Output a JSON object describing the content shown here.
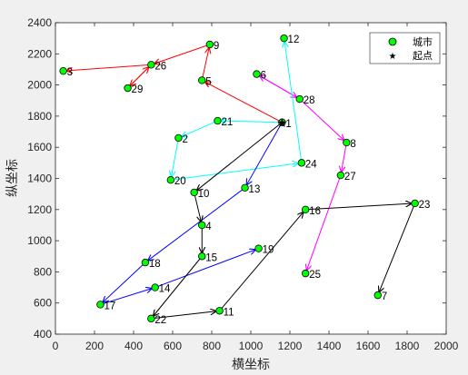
{
  "chart_data": {
    "type": "scatter",
    "title": "",
    "xlabel": "横坐标",
    "ylabel": "纵坐标",
    "xlim": [
      0,
      2000
    ],
    "ylim": [
      400,
      2400
    ],
    "xticks": [
      0,
      200,
      400,
      600,
      800,
      1000,
      1200,
      1400,
      1600,
      1800,
      2000
    ],
    "yticks": [
      400,
      600,
      800,
      1000,
      1200,
      1400,
      1600,
      1800,
      2000,
      2200,
      2400
    ],
    "grid": false,
    "legend_position": "top-right",
    "legend": [
      {
        "label": "城市",
        "marker": "circle",
        "color": "#00ff00"
      },
      {
        "label": "起点",
        "marker": "star",
        "color": "#000000"
      }
    ],
    "cities": [
      {
        "id": "1",
        "x": 1160,
        "y": 1760
      },
      {
        "id": "2",
        "x": 630,
        "y": 1660
      },
      {
        "id": "4",
        "x": 750,
        "y": 1100
      },
      {
        "id": "5",
        "x": 750,
        "y": 2030
      },
      {
        "id": "6",
        "x": 1030,
        "y": 2070
      },
      {
        "id": "7",
        "x": 1650,
        "y": 650
      },
      {
        "id": "8",
        "x": 1490,
        "y": 1630
      },
      {
        "id": "9",
        "x": 790,
        "y": 2260
      },
      {
        "id": "10",
        "x": 710,
        "y": 1310
      },
      {
        "id": "11",
        "x": 840,
        "y": 550
      },
      {
        "id": "12",
        "x": 1170,
        "y": 2300
      },
      {
        "id": "13",
        "x": 970,
        "y": 1340
      },
      {
        "id": "14",
        "x": 510,
        "y": 700
      },
      {
        "id": "15",
        "x": 750,
        "y": 900
      },
      {
        "id": "16",
        "x": 1280,
        "y": 1200
      },
      {
        "id": "17",
        "x": 230,
        "y": 590
      },
      {
        "id": "18",
        "x": 460,
        "y": 860
      },
      {
        "id": "19",
        "x": 1040,
        "y": 950
      },
      {
        "id": "20",
        "x": 590,
        "y": 1390
      },
      {
        "id": "21",
        "x": 830,
        "y": 1770
      },
      {
        "id": "22",
        "x": 490,
        "y": 500
      },
      {
        "id": "23",
        "x": 1840,
        "y": 1240
      },
      {
        "id": "24",
        "x": 1260,
        "y": 1500
      },
      {
        "id": "25",
        "x": 1280,
        "y": 790
      },
      {
        "id": "26",
        "x": 490,
        "y": 2130
      },
      {
        "id": "27",
        "x": 1460,
        "y": 1420
      },
      {
        "id": "28",
        "x": 1250,
        "y": 1910
      },
      {
        "id": "29",
        "x": 370,
        "y": 1980
      },
      {
        "id": "3",
        "x": 40,
        "y": 2090
      }
    ],
    "start_city": "1",
    "routes": [
      {
        "color": "#ff0000",
        "path": [
          "1",
          "5",
          "9",
          "26",
          "29",
          "26",
          "3"
        ]
      },
      {
        "color": "#ff00ff",
        "path": [
          "28",
          "6",
          "28",
          "8",
          "27",
          "25"
        ]
      },
      {
        "color": "#00ffff",
        "path": [
          "1",
          "21",
          "2",
          "20",
          "24",
          "12"
        ]
      },
      {
        "color": "#0000ff",
        "path": [
          "1",
          "13",
          "18",
          "17",
          "14",
          "19"
        ]
      },
      {
        "color": "#000000",
        "path": [
          "1",
          "10",
          "4",
          "15",
          "22",
          "11",
          "16",
          "23",
          "7"
        ]
      }
    ]
  }
}
